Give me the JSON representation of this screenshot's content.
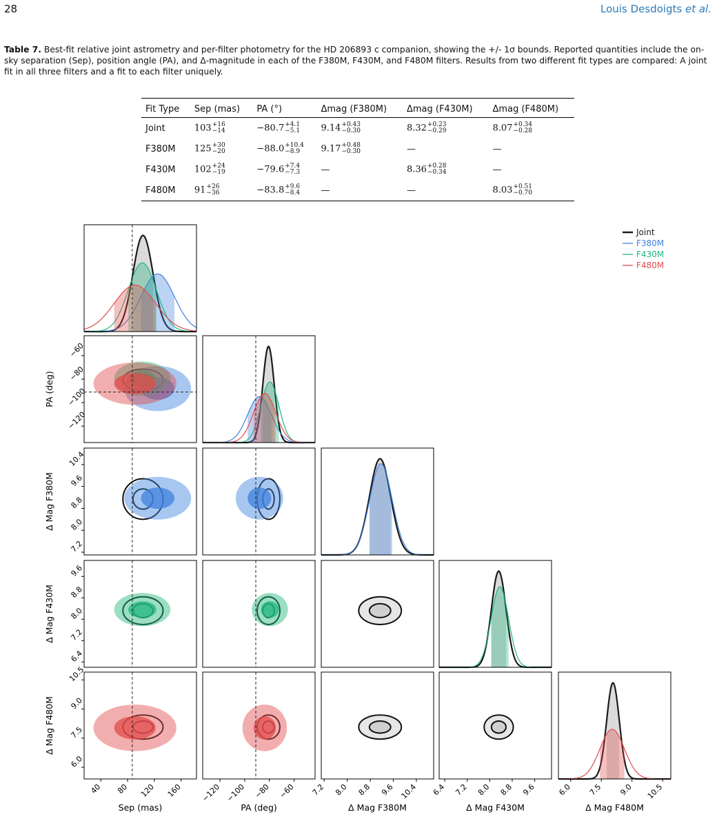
{
  "header": {
    "page_number": "28",
    "authors": "Louis Desdoigts",
    "etal": "et al."
  },
  "caption": {
    "label": "Table 7.",
    "text": "Best-fit relative joint astrometry and per-filter photometry for the HD 206893 c companion, showing the +/- 1σ bounds. Reported quantities include the on-sky separation (Sep), position angle (PA), and Δ-magnitude in each of the F380M, F430M, and F480M filters. Results from two different fit types are compared: A joint fit in all three filters and a fit to each filter uniquely."
  },
  "table": {
    "columns": [
      "Fit Type",
      "Sep (mas)",
      "PA (°)",
      "Δmag (F380M)",
      "Δmag (F430M)",
      "Δmag (F480M)"
    ],
    "rows": [
      [
        "Joint",
        {
          "value": "103",
          "upper": "+16",
          "lower": "−14"
        },
        {
          "value": "−80.7",
          "upper": "+4.1",
          "lower": "−5.1"
        },
        {
          "value": "9.14",
          "upper": "+0.43",
          "lower": "−0.30"
        },
        {
          "value": "8.32",
          "upper": "+0.23",
          "lower": "−0.29"
        },
        {
          "value": "8.07",
          "upper": "+0.34",
          "lower": "−0.28"
        }
      ],
      [
        "F380M",
        {
          "value": "125",
          "upper": "+30",
          "lower": "−20"
        },
        {
          "value": "−88.0",
          "upper": "+10.4",
          "lower": "−8.9"
        },
        {
          "value": "9.17",
          "upper": "+0.48",
          "lower": "−0.30"
        },
        "—",
        "—"
      ],
      [
        "F430M",
        {
          "value": "102",
          "upper": "+24",
          "lower": "−19"
        },
        {
          "value": "−79.6",
          "upper": "+7.4",
          "lower": "−7.3"
        },
        "—",
        {
          "value": "8.36",
          "upper": "+0.28",
          "lower": "−0.34"
        },
        "—"
      ],
      [
        "F480M",
        {
          "value": "91",
          "upper": "+26",
          "lower": "−36"
        },
        {
          "value": "−83.8",
          "upper": "+9.6",
          "lower": "−8.4"
        },
        "—",
        "—",
        {
          "value": "8.03",
          "upper": "+0.51",
          "lower": "−0.70"
        }
      ]
    ]
  },
  "figure": {
    "variables": [
      {
        "label": "Sep (mas)",
        "lim": [
          15,
          183
        ],
        "ticks": [
          40,
          80,
          120,
          160
        ]
      },
      {
        "label": "PA (deg)",
        "lim": [
          -134,
          -43
        ],
        "ticks": [
          {
            "value": -120,
            "label": "−120"
          },
          {
            "value": -100,
            "label": "−100"
          },
          {
            "value": -80,
            "label": "−80"
          },
          {
            "value": -60,
            "label": "−60"
          }
        ]
      },
      {
        "label": "Δ Mag F380M",
        "lim": [
          7.1,
          11.0
        ],
        "ticks": [
          7.2,
          {
            "value": 8,
            "label": "8.0"
          },
          8.8,
          9.6,
          10.4
        ]
      },
      {
        "label": "Δ Mag F430M",
        "lim": [
          6.2,
          10.2
        ],
        "ticks": [
          6.4,
          7.2,
          {
            "value": 8,
            "label": "8.0"
          },
          8.8,
          9.6
        ]
      },
      {
        "label": "Δ Mag F480M",
        "lim": [
          5.4,
          10.9
        ],
        "ticks": [
          {
            "value": 6,
            "label": "6.0"
          },
          7.5,
          {
            "value": 9,
            "label": "9.0"
          },
          10.5
        ]
      }
    ],
    "reference_values": [
      87,
      -91,
      null,
      null,
      null
    ],
    "series": [
      {
        "name": "Joint",
        "color": "#1a1a1a",
        "median": [
          103,
          -80.7,
          9.14,
          8.32,
          8.07
        ],
        "sigma": [
          15,
          4.6,
          0.37,
          0.26,
          0.31
        ]
      },
      {
        "name": "F380M",
        "color": "#3f82de",
        "median": [
          125,
          -88,
          9.17,
          null,
          null
        ],
        "sigma": [
          25,
          9.6,
          0.39,
          null,
          null
        ]
      },
      {
        "name": "F430M",
        "color": "#1fb57d",
        "median": [
          102,
          -79.6,
          null,
          8.36,
          null
        ],
        "sigma": [
          21,
          7.3,
          null,
          0.31,
          null
        ]
      },
      {
        "name": "F480M",
        "color": "#e24b4b",
        "median": [
          91,
          -83.8,
          null,
          null,
          8.03
        ],
        "sigma": [
          31,
          9,
          null,
          null,
          0.6
        ]
      }
    ]
  }
}
